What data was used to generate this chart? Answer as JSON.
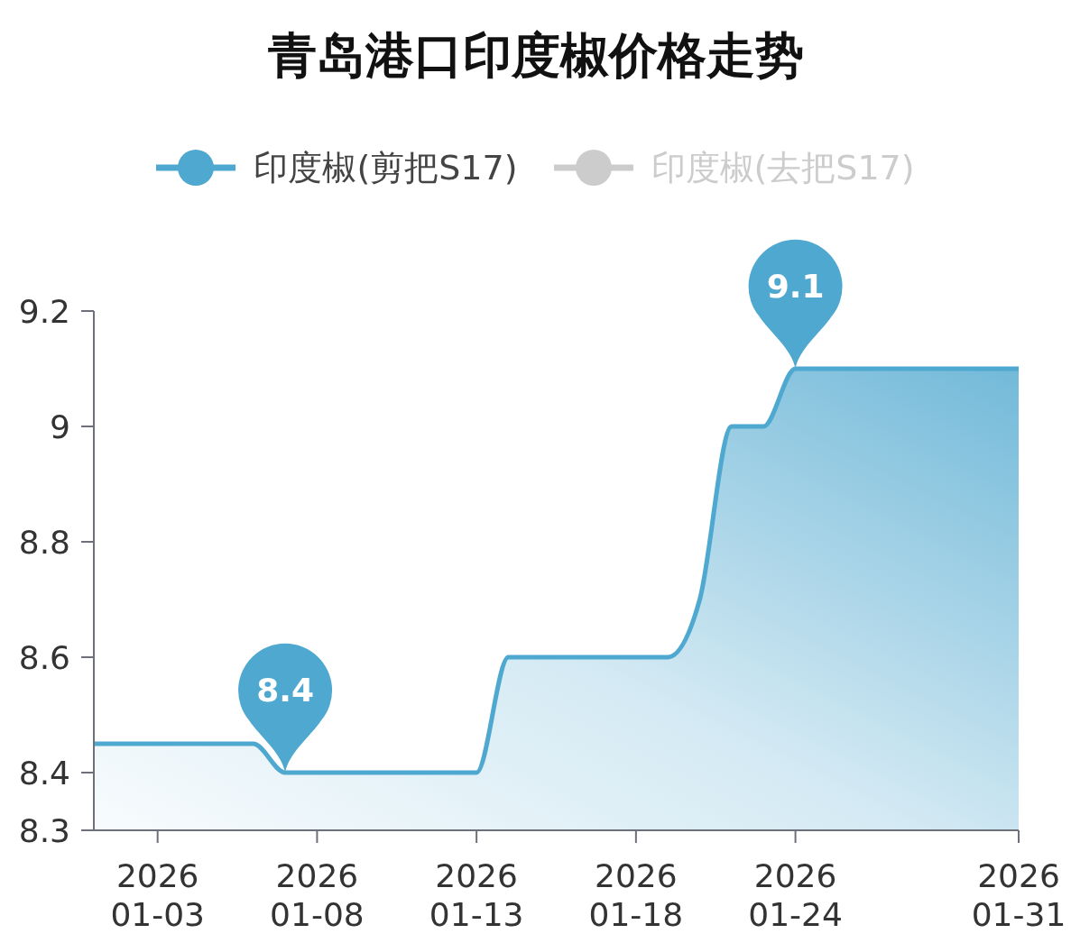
{
  "chart_data": {
    "type": "area",
    "title": "青岛港口印度椒价格走势",
    "categories": [
      null,
      null,
      "2026\n01-03",
      null,
      null,
      null,
      null,
      "2026\n01-08",
      null,
      null,
      null,
      null,
      "2026\n01-13",
      null,
      null,
      null,
      null,
      "2026\n01-18",
      null,
      null,
      null,
      null,
      "2026\n01-24",
      null,
      null,
      null,
      null,
      null,
      null,
      "2026\n01-31"
    ],
    "series": [
      {
        "name": "印度椒(剪把S17)",
        "color": "#4fa8cf",
        "values": [
          8.45,
          8.45,
          8.45,
          8.45,
          8.45,
          8.45,
          8.4,
          8.4,
          8.4,
          8.4,
          8.4,
          8.4,
          8.4,
          8.6,
          8.6,
          8.6,
          8.6,
          8.6,
          8.6,
          8.7,
          9.0,
          9.0,
          9.1,
          9.1,
          9.1,
          9.1,
          9.1,
          9.1,
          9.1,
          9.1
        ],
        "value_labels": [
          null,
          null,
          null,
          null,
          null,
          null,
          "8.4",
          null,
          null,
          null,
          null,
          null,
          null,
          null,
          null,
          null,
          null,
          null,
          null,
          null,
          null,
          null,
          "9.1",
          null,
          null,
          null,
          null,
          null,
          null,
          null
        ]
      },
      {
        "name": "印度椒(去把S17)",
        "color": "#cccccc",
        "values": [
          null,
          null,
          null,
          null,
          null,
          null,
          null,
          null,
          null,
          null,
          null,
          null,
          null,
          null,
          null,
          null,
          null,
          null,
          null,
          null,
          null,
          null,
          null,
          null,
          null,
          null,
          null,
          null,
          null,
          null
        ]
      }
    ],
    "ylim": [
      8.3,
      9.2
    ],
    "yticks": [
      8.3,
      8.4,
      8.6,
      8.8,
      9,
      9.2
    ],
    "legend": "top"
  }
}
